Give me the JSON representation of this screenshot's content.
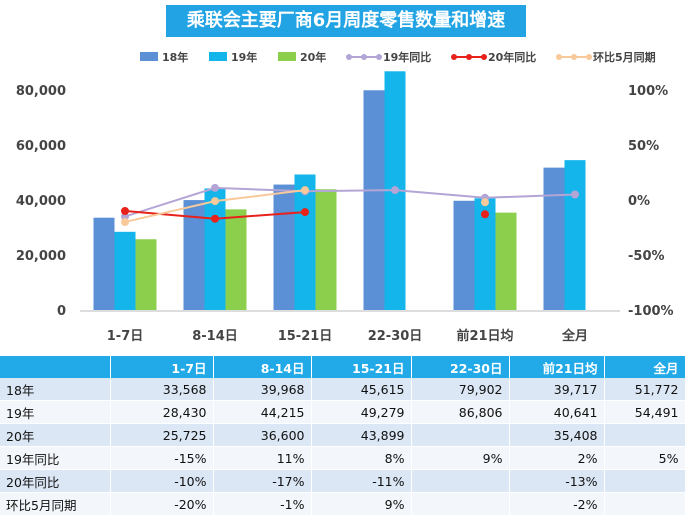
{
  "title": "乘联会主要厂商6月周度零售数量和增速",
  "chart_data": {
    "type": "bar",
    "categories": [
      "1-7日",
      "8-14日",
      "15-21日",
      "22-30日",
      "前21日均",
      "全月"
    ],
    "series": [
      {
        "name": "18年",
        "kind": "bar",
        "axis": "left",
        "color": "#5b8fd6",
        "values": [
          33568,
          39968,
          45615,
          79902,
          39717,
          51772
        ]
      },
      {
        "name": "19年",
        "kind": "bar",
        "axis": "left",
        "color": "#13b5ea",
        "values": [
          28430,
          44215,
          49279,
          86806,
          40641,
          54491
        ]
      },
      {
        "name": "20年",
        "kind": "bar",
        "axis": "left",
        "color": "#8ccf4d",
        "values": [
          25725,
          36600,
          43899,
          null,
          35408,
          null
        ]
      },
      {
        "name": "19年同比",
        "kind": "line",
        "axis": "right",
        "color": "#b3a5d6",
        "values": [
          -0.15,
          0.11,
          0.08,
          0.09,
          0.02,
          0.05
        ]
      },
      {
        "name": "20年同比",
        "kind": "line",
        "axis": "right",
        "color": "#e8211a",
        "values": [
          -0.1,
          -0.17,
          -0.11,
          null,
          -0.13,
          null
        ]
      },
      {
        "name": "环比5月同期",
        "kind": "line",
        "axis": "right",
        "color": "#f8c99a",
        "values": [
          -0.2,
          -0.01,
          0.09,
          null,
          -0.02,
          null
        ]
      }
    ],
    "ylim_left": [
      0,
      80000
    ],
    "yticks_left": [
      "0",
      "20,000",
      "40,000",
      "60,000",
      "80,000"
    ],
    "ylim_right": [
      -1,
      1
    ],
    "yticks_right": [
      "-100%",
      "-50%",
      "0%",
      "50%",
      "100%"
    ],
    "legend_position": "top"
  },
  "table": {
    "headers": [
      "",
      "1-7日",
      "8-14日",
      "15-21日",
      "22-30日",
      "前21日均",
      "全月"
    ],
    "rows": [
      [
        "18年",
        "33,568",
        "39,968",
        "45,615",
        "79,902",
        "39,717",
        "51,772"
      ],
      [
        "19年",
        "28,430",
        "44,215",
        "49,279",
        "86,806",
        "40,641",
        "54,491"
      ],
      [
        "20年",
        "25,725",
        "36,600",
        "43,899",
        "",
        "35,408",
        ""
      ],
      [
        "19年同比",
        "-15%",
        "11%",
        "8%",
        "9%",
        "2%",
        "5%"
      ],
      [
        "20年同比",
        "-10%",
        "-17%",
        "-11%",
        "",
        "-13%",
        ""
      ],
      [
        "环比5月同期",
        "-20%",
        "-1%",
        "9%",
        "",
        "-2%",
        ""
      ]
    ]
  }
}
